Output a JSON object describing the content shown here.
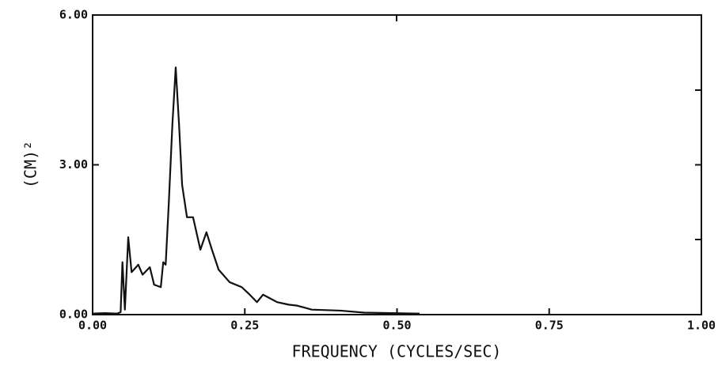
{
  "chart_data": {
    "type": "line",
    "xlabel": "FREQUENCY (CYCLES/SEC)",
    "ylabel": "(CM)²",
    "x": [
      0,
      0.02,
      0.04,
      0.046,
      0.049,
      0.053,
      0.0585,
      0.064,
      0.075,
      0.082,
      0.094,
      0.101,
      0.112,
      0.116,
      0.12,
      0.125,
      0.131,
      0.1365,
      0.142,
      0.147,
      0.155,
      0.165,
      0.177,
      0.187,
      0.196,
      0.207,
      0.225,
      0.245,
      0.258,
      0.27,
      0.28,
      0.303,
      0.322,
      0.336,
      0.36,
      0.407,
      0.446,
      0.537
    ],
    "series": [
      {
        "color": "#111111",
        "values": [
          0.02,
          0.03,
          0.02,
          0.05,
          1.05,
          0.1,
          1.55,
          0.85,
          1.0,
          0.8,
          0.95,
          0.6,
          0.55,
          1.05,
          1.0,
          2.2,
          3.8,
          4.95,
          3.8,
          2.6,
          1.95,
          1.95,
          1.3,
          1.65,
          1.3,
          0.9,
          0.65,
          0.55,
          0.4,
          0.25,
          0.4,
          0.25,
          0.2,
          0.18,
          0.1,
          0.08,
          0.04,
          0.02
        ]
      }
    ],
    "xlim": [
      0,
      1
    ],
    "xticks": [
      {
        "value": 0,
        "label": "0.00"
      },
      {
        "value": 0.25,
        "label": "0.25"
      },
      {
        "value": 0.5,
        "label": "0.50"
      },
      {
        "value": 0.75,
        "label": "0.75"
      },
      {
        "value": 1,
        "label": "1.00"
      }
    ],
    "ylim": [
      0,
      6
    ],
    "yticks": [
      {
        "value": 0,
        "label": "0.00"
      },
      {
        "value": 3,
        "label": "3.00"
      },
      {
        "value": 6,
        "label": "6.00"
      }
    ],
    "grid": false
  }
}
